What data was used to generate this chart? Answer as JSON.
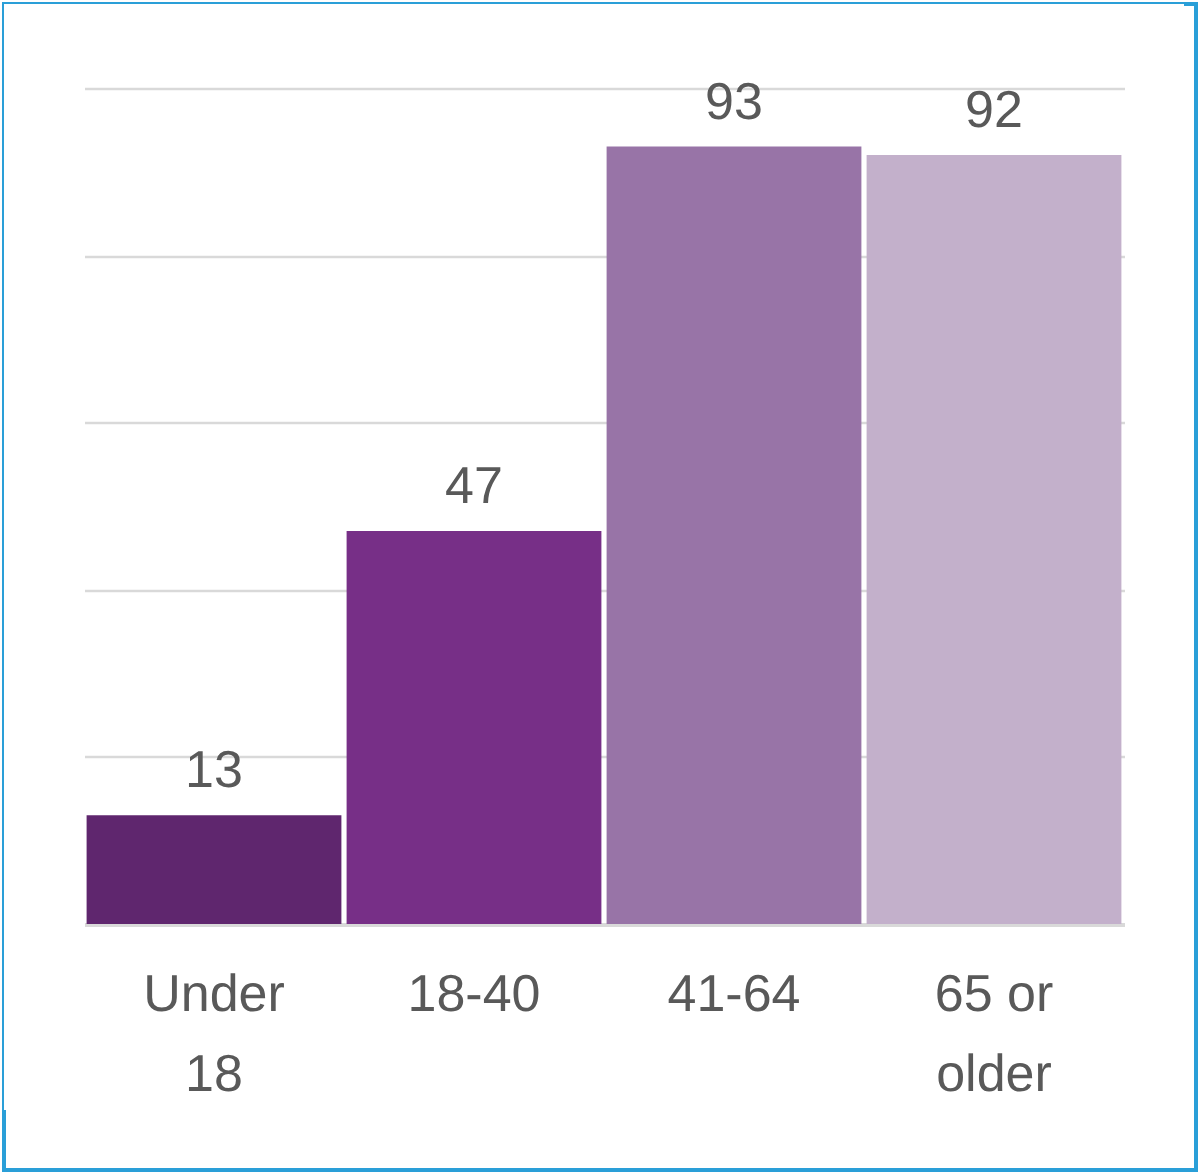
{
  "chart_data": {
    "type": "bar",
    "categories": [
      "Under 18",
      "18-40",
      "41-64",
      "65 or older"
    ],
    "values": [
      13,
      47,
      93,
      92
    ],
    "colors": [
      "#5f266e",
      "#772f87",
      "#9874a7",
      "#c3b0cb"
    ],
    "ylim": [
      0,
      100
    ],
    "yticks": [
      0,
      20,
      40,
      60,
      80,
      100
    ],
    "grid": "y",
    "tick_labels": "x",
    "data_labels": true
  }
}
